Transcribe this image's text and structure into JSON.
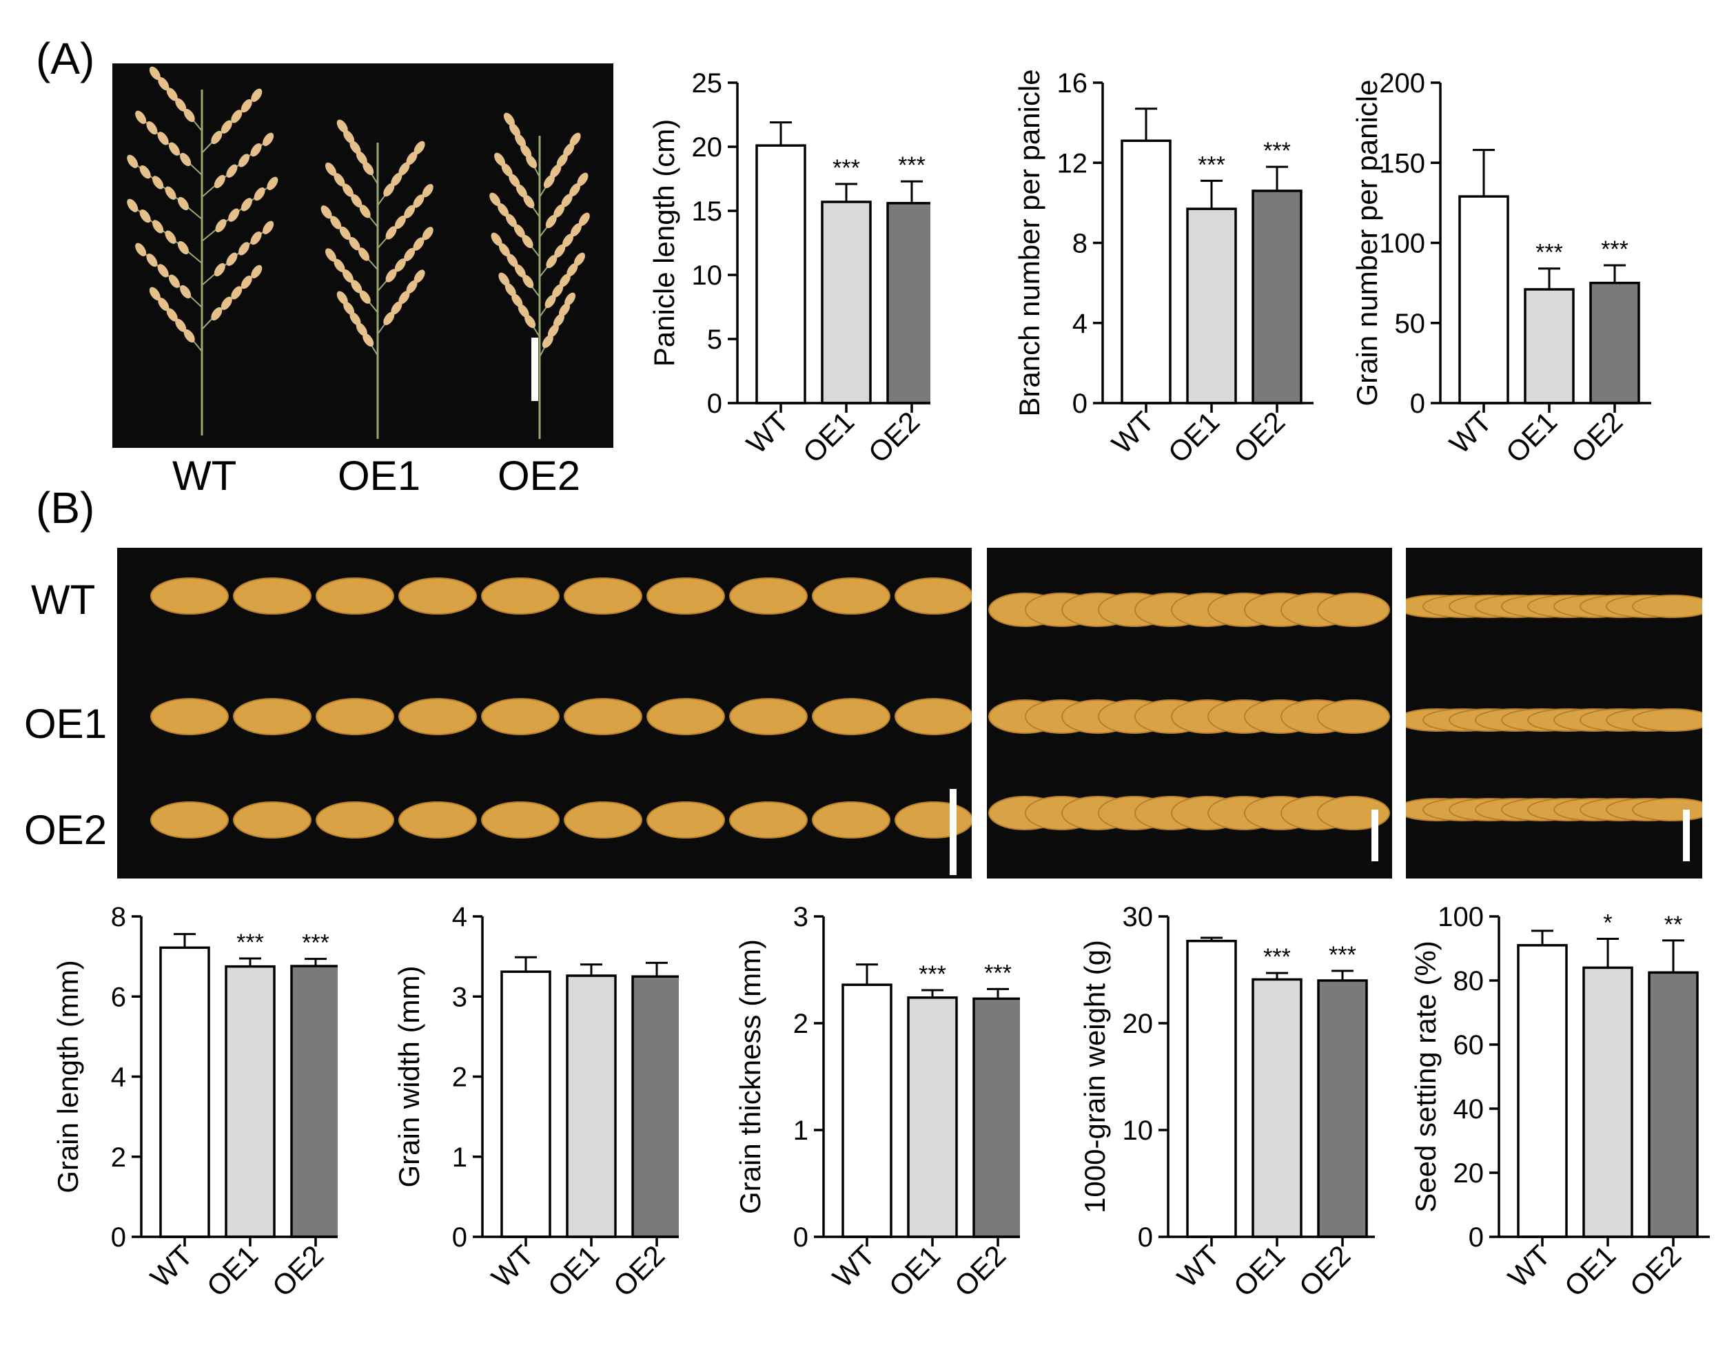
{
  "figure": {
    "panel_a_label": "(A)",
    "panel_b_label": "(B)",
    "panicle_labels": [
      "WT",
      "OE1",
      "OE2"
    ],
    "grain_row_labels": [
      "WT",
      "OE1",
      "OE2"
    ],
    "colors": {
      "WT": "#ffffff",
      "OE1": "#d9d9d9",
      "OE2": "#7a7a7a",
      "photo_bg": "#0b0b0b",
      "panicle": "#e6c08a",
      "grain": "#d8a245"
    }
  },
  "chart_data": [
    {
      "type": "bar",
      "categories": [
        "WT",
        "OE1",
        "OE2"
      ],
      "values": [
        20.1,
        15.7,
        15.6
      ],
      "errors": [
        1.8,
        1.4,
        1.7
      ],
      "significance": [
        "",
        "***",
        "***"
      ],
      "ylabel": "Panicle length (cm)",
      "ylim": [
        0,
        25
      ],
      "yticks": [
        0,
        5,
        10,
        15,
        20,
        25
      ]
    },
    {
      "type": "bar",
      "categories": [
        "WT",
        "OE1",
        "OE2"
      ],
      "values": [
        13.1,
        9.7,
        10.6
      ],
      "errors": [
        1.6,
        1.4,
        1.2
      ],
      "significance": [
        "",
        "***",
        "***"
      ],
      "ylabel": "Branch number per panicle",
      "ylim": [
        0,
        16
      ],
      "yticks": [
        0,
        4,
        8,
        12,
        16
      ]
    },
    {
      "type": "bar",
      "categories": [
        "WT",
        "OE1",
        "OE2"
      ],
      "values": [
        129,
        71,
        75
      ],
      "errors": [
        29,
        13,
        11
      ],
      "significance": [
        "",
        "***",
        "***"
      ],
      "ylabel": "Grain number per panicle",
      "ylim": [
        0,
        200
      ],
      "yticks": [
        0,
        50,
        100,
        150,
        200
      ]
    },
    {
      "type": "bar",
      "categories": [
        "WT",
        "OE1",
        "OE2"
      ],
      "values": [
        7.22,
        6.75,
        6.76
      ],
      "errors": [
        0.34,
        0.2,
        0.18
      ],
      "significance": [
        "",
        "***",
        "***"
      ],
      "ylabel": "Grain length (mm)",
      "ylim": [
        0,
        8
      ],
      "yticks": [
        0,
        2,
        4,
        6,
        8
      ]
    },
    {
      "type": "bar",
      "categories": [
        "WT",
        "OE1",
        "OE2"
      ],
      "values": [
        3.31,
        3.26,
        3.25
      ],
      "errors": [
        0.18,
        0.14,
        0.17
      ],
      "significance": [
        "",
        "",
        ""
      ],
      "ylabel": "Grain width (mm)",
      "ylim": [
        0,
        4
      ],
      "yticks": [
        0,
        1,
        2,
        3,
        4
      ]
    },
    {
      "type": "bar",
      "categories": [
        "WT",
        "OE1",
        "OE2"
      ],
      "values": [
        2.36,
        2.24,
        2.23
      ],
      "errors": [
        0.19,
        0.07,
        0.09
      ],
      "significance": [
        "",
        "***",
        "***"
      ],
      "ylabel": "Grain thickness (mm)",
      "ylim": [
        0,
        3
      ],
      "yticks": [
        0,
        1,
        2,
        3
      ]
    },
    {
      "type": "bar",
      "categories": [
        "WT",
        "OE1",
        "OE2"
      ],
      "values": [
        27.7,
        24.1,
        24.0
      ],
      "errors": [
        0.3,
        0.6,
        0.9
      ],
      "significance": [
        "",
        "***",
        "***"
      ],
      "ylabel": "1000-grain weight (g)",
      "ylim": [
        0,
        30
      ],
      "yticks": [
        0,
        10,
        20,
        30
      ]
    },
    {
      "type": "bar",
      "categories": [
        "WT",
        "OE1",
        "OE2"
      ],
      "values": [
        91,
        84,
        82.5
      ],
      "errors": [
        4.5,
        9,
        10
      ],
      "significance": [
        "",
        "*",
        "**"
      ],
      "ylabel": "Seed setting rate (%)",
      "ylim": [
        0,
        100
      ],
      "yticks": [
        0,
        20,
        40,
        60,
        80,
        100
      ]
    }
  ]
}
